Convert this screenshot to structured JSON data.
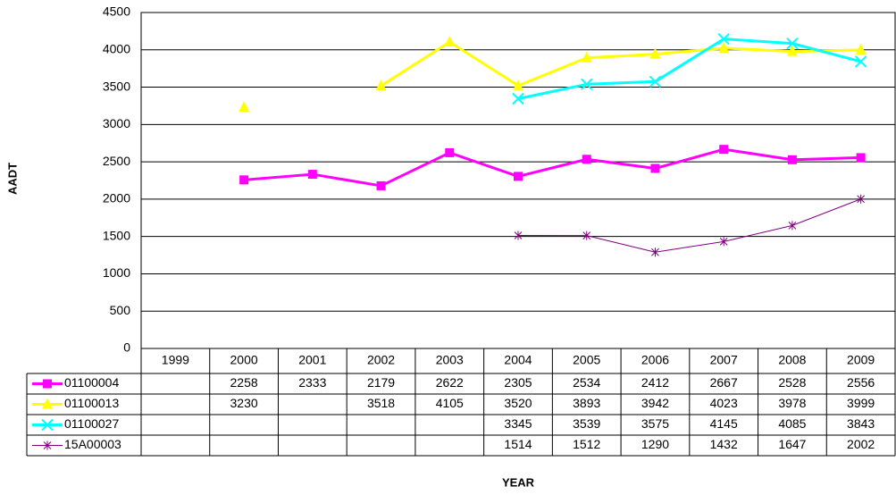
{
  "chart_data": {
    "type": "line",
    "x_label": "YEAR",
    "y_label": "AADT",
    "categories": [
      "1999",
      "2000",
      "2001",
      "2002",
      "2003",
      "2004",
      "2005",
      "2006",
      "2007",
      "2008",
      "2009"
    ],
    "series": [
      {
        "name": "01100004",
        "color": "#ff00ff",
        "marker": "square",
        "values": [
          null,
          2258,
          2333,
          2179,
          2622,
          2305,
          2534,
          2412,
          2667,
          2528,
          2556
        ]
      },
      {
        "name": "01100013",
        "color": "#ffff00",
        "marker": "triangle",
        "values": [
          null,
          3230,
          null,
          3518,
          4105,
          3520,
          3893,
          3942,
          4023,
          3978,
          3999
        ]
      },
      {
        "name": "01100027",
        "color": "#00ffff",
        "marker": "x",
        "values": [
          null,
          null,
          null,
          null,
          null,
          3345,
          3539,
          3575,
          4145,
          4085,
          3843
        ]
      },
      {
        "name": "15A00003",
        "color": "#800080",
        "marker": "star",
        "values": [
          null,
          null,
          null,
          null,
          null,
          1514,
          1512,
          1290,
          1432,
          1647,
          2002
        ]
      }
    ],
    "ylim": [
      0,
      4500
    ],
    "yticks": [
      0,
      500,
      1000,
      1500,
      2000,
      2500,
      3000,
      3500,
      4000,
      4500
    ],
    "grid": true,
    "data_table": true
  }
}
